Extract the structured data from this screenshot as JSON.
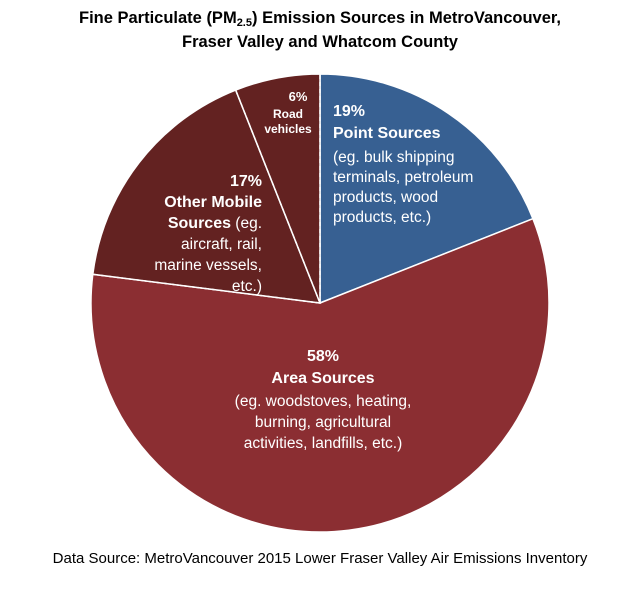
{
  "title": {
    "prefix": "Fine Particulate (PM",
    "sub": "2.5",
    "suffix": ") Emission Sources in MetroVancouver,",
    "line2": "Fraser Valley  and Whatcom County"
  },
  "source": "Data Source: MetroVancouver 2015 Lower Fraser Valley Air Emissions Inventory",
  "chart_data": {
    "type": "pie",
    "start_angle_deg": 0,
    "direction": "clockwise",
    "slices": [
      {
        "value": 19,
        "pct_label": "19%",
        "name": "Point Sources",
        "desc_lines": [
          "(eg. bulk shipping",
          "terminals, petroleum",
          "products, wood",
          "products, etc.)"
        ],
        "color": "#376092"
      },
      {
        "value": 58,
        "pct_label": "58%",
        "name": "Area Sources",
        "desc_lines": [
          "(eg. woodstoves, heating,",
          "burning,  agricultural",
          "activities, landfills,  etc.)"
        ],
        "color": "#8B2E32"
      },
      {
        "value": 17,
        "pct_label": "17%",
        "name": "Other Mobile",
        "label_lines": [
          {
            "bold": "Other Mobile",
            "normal": ""
          },
          {
            "bold": "Sources",
            "normal": " (eg."
          },
          {
            "bold": "",
            "normal": "aircraft, rail,"
          },
          {
            "bold": "",
            "normal": "marine vessels,"
          },
          {
            "bold": "",
            "normal": "etc.)"
          }
        ],
        "color": "#632221"
      },
      {
        "value": 6,
        "pct_label": "6%",
        "name": "Road vehicles",
        "name_lines": [
          "Road",
          "vehicles"
        ],
        "color": "#632221"
      }
    ]
  }
}
